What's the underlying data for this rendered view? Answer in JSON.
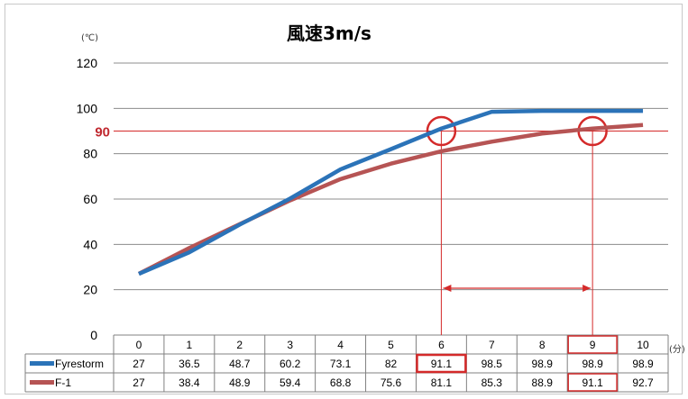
{
  "chart_data": {
    "type": "line",
    "title": "風速3m/s",
    "y_unit": "(℃)",
    "x_unit": "(分)",
    "x": [
      0,
      1,
      2,
      3,
      4,
      5,
      6,
      7,
      8,
      9,
      10
    ],
    "ylim": [
      0,
      120
    ],
    "yticks": [
      0,
      20,
      40,
      60,
      80,
      100,
      120
    ],
    "grid": true,
    "legend": "data-table",
    "series": [
      {
        "name": "Fyrestorm",
        "color": "#2b73b8",
        "values": [
          27,
          36.5,
          48.7,
          60.2,
          73.1,
          82,
          91.1,
          98.5,
          98.9,
          98.9,
          98.9
        ]
      },
      {
        "name": "F-1",
        "color": "#b65454",
        "values": [
          27,
          38.4,
          48.9,
          59.4,
          68.8,
          75.6,
          81.1,
          85.3,
          88.9,
          91.1,
          92.7
        ]
      }
    ],
    "table_rows": [
      [
        "27",
        "36.5",
        "48.7",
        "60.2",
        "73.1",
        "82",
        "91.1",
        "98.5",
        "98.9",
        "98.9",
        "98.9"
      ],
      [
        "27",
        "38.4",
        "48.9",
        "59.4",
        "68.8",
        "75.6",
        "81.1",
        "85.3",
        "88.9",
        "91.1",
        "92.7"
      ]
    ],
    "reference_line": {
      "value": 90,
      "label": "90",
      "color": "#d42a2a"
    },
    "highlights": [
      {
        "series": "Fyrestorm",
        "x": 6
      },
      {
        "series": "F-1",
        "x": 9
      }
    ],
    "interval_arrow": {
      "from": 6,
      "to": 9
    }
  }
}
